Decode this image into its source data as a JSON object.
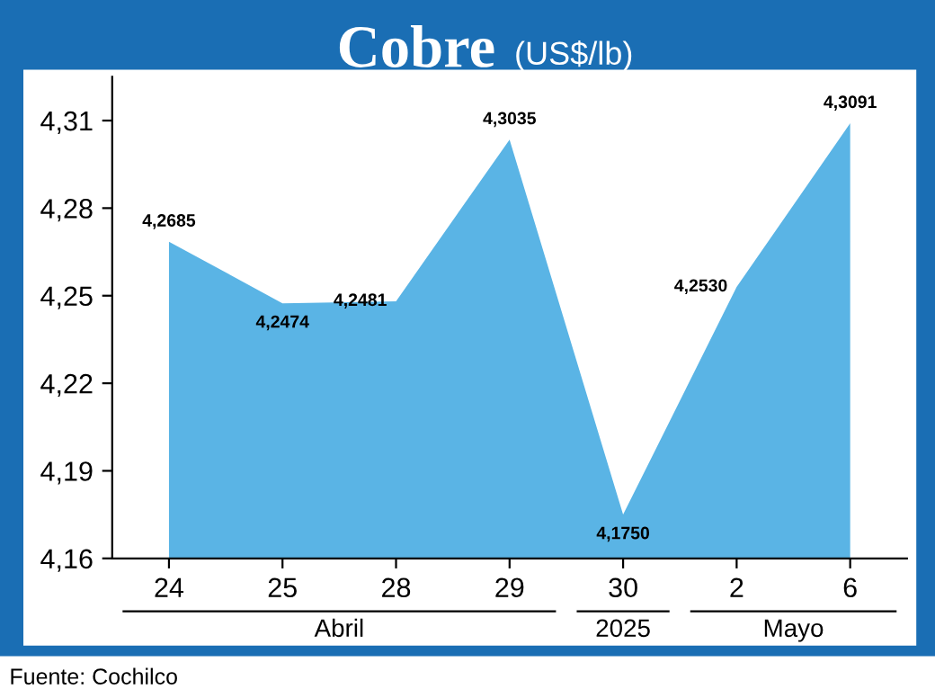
{
  "chart_data": {
    "type": "area",
    "title": "Cobre",
    "subtitle": "(US$/lb)",
    "categories": [
      "24",
      "25",
      "28",
      "29",
      "30",
      "2",
      "6"
    ],
    "values": [
      4.2685,
      4.2474,
      4.2481,
      4.3035,
      4.175,
      4.253,
      4.3091
    ],
    "value_labels": [
      "4,2685",
      "4,2474",
      "4,2481",
      "4,3035",
      "4,1750",
      "4,2530",
      "4,3091"
    ],
    "color": "#5ab4e5",
    "ylim": [
      4.16,
      4.325
    ],
    "yticks": [
      {
        "value": 4.16,
        "label": "4,16"
      },
      {
        "value": 4.19,
        "label": "4,19"
      },
      {
        "value": 4.22,
        "label": "4,22"
      },
      {
        "value": 4.25,
        "label": "4,25"
      },
      {
        "value": 4.28,
        "label": "4,28"
      },
      {
        "value": 4.31,
        "label": "4,31"
      }
    ],
    "grid": false,
    "legend": false,
    "annotations": [
      "Abril",
      "2025",
      "Mayo",
      "Fuente: Cochilco"
    ]
  }
}
